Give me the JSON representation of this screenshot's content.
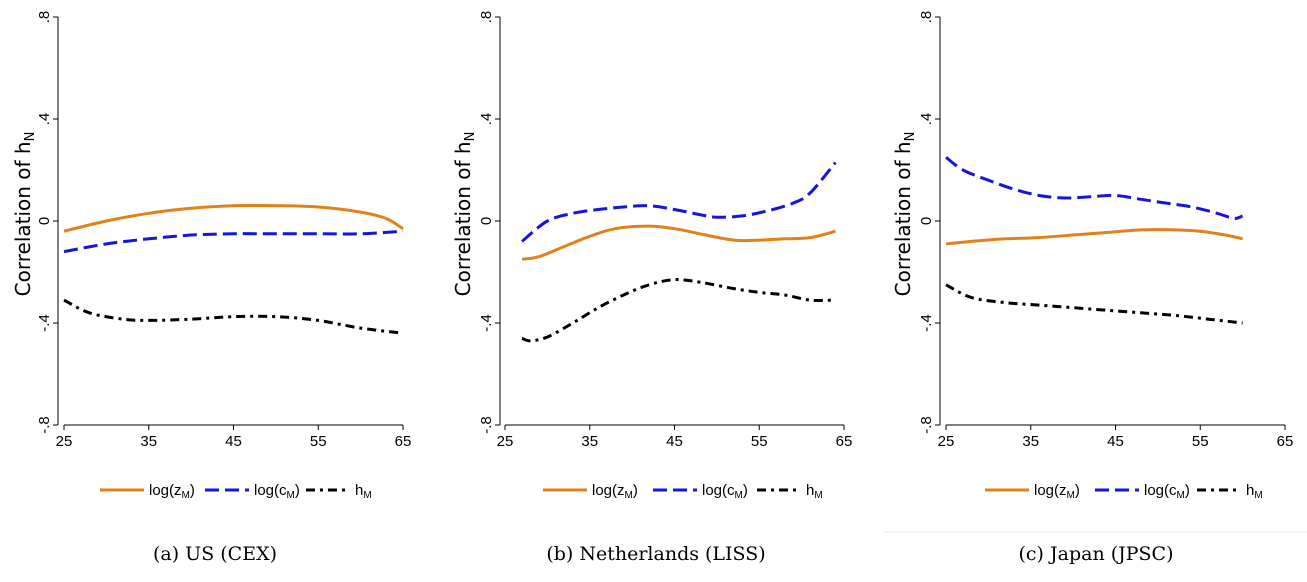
{
  "colors": {
    "log_z": "#e0811a",
    "log_c": "#1515dc",
    "h": "#000000"
  },
  "legend_labels": {
    "log_z": [
      "log(z",
      "M",
      ")"
    ],
    "log_c": [
      "log(c",
      "M",
      ")"
    ],
    "h": [
      "h",
      "M",
      ""
    ]
  },
  "ylabel_parts": [
    "Correlation of h",
    "N"
  ],
  "chart_data": [
    {
      "type": "line",
      "caption": "(a)  US (CEX)",
      "ylabel": "Correlation of h_N",
      "xlim": [
        25,
        65
      ],
      "ylim": [
        -0.8,
        0.8
      ],
      "xticks": [
        25,
        35,
        45,
        55,
        65
      ],
      "yticks": [
        -0.8,
        -0.4,
        0,
        0.4,
        0.8
      ],
      "ytick_labels": [
        "-.8",
        "-.4",
        "0",
        ".4",
        ".8"
      ],
      "legend_position": "bottom",
      "series": [
        {
          "name": "log(z_M)",
          "key": "log_z",
          "style": "solid",
          "x": [
            25,
            30,
            35,
            40,
            45,
            50,
            55,
            60,
            63,
            65
          ],
          "y": [
            -0.04,
            0.0,
            0.03,
            0.05,
            0.06,
            0.06,
            0.055,
            0.035,
            0.01,
            -0.03
          ]
        },
        {
          "name": "log(c_M)",
          "key": "log_c",
          "style": "dash",
          "x": [
            25,
            30,
            35,
            40,
            45,
            50,
            55,
            60,
            65
          ],
          "y": [
            -0.12,
            -0.09,
            -0.07,
            -0.055,
            -0.05,
            -0.05,
            -0.05,
            -0.05,
            -0.04
          ]
        },
        {
          "name": "h_M",
          "key": "h",
          "style": "dashdot",
          "x": [
            25,
            28,
            32,
            35,
            40,
            45,
            50,
            55,
            60,
            65
          ],
          "y": [
            -0.31,
            -0.36,
            -0.385,
            -0.39,
            -0.385,
            -0.375,
            -0.375,
            -0.39,
            -0.42,
            -0.44
          ]
        }
      ]
    },
    {
      "type": "line",
      "caption": "(b)  Netherlands (LISS)",
      "ylabel": "Correlation of h_N",
      "xlim": [
        25,
        65
      ],
      "ylim": [
        -0.8,
        0.8
      ],
      "xticks": [
        25,
        35,
        45,
        55,
        65
      ],
      "yticks": [
        -0.8,
        -0.4,
        0,
        0.4,
        0.8
      ],
      "ytick_labels": [
        "-.8",
        "-.4",
        "0",
        ".4",
        ".8"
      ],
      "legend_position": "bottom",
      "series": [
        {
          "name": "log(z_M)",
          "key": "log_z",
          "style": "solid",
          "x": [
            27,
            29,
            32,
            35,
            38,
            42,
            45,
            48,
            52,
            55,
            58,
            61,
            64
          ],
          "y": [
            -0.15,
            -0.14,
            -0.1,
            -0.06,
            -0.03,
            -0.02,
            -0.03,
            -0.05,
            -0.075,
            -0.075,
            -0.07,
            -0.065,
            -0.04
          ]
        },
        {
          "name": "log(c_M)",
          "key": "log_c",
          "style": "dash",
          "x": [
            27,
            30,
            33,
            36,
            39,
            42,
            45,
            48,
            50,
            53,
            56,
            59,
            61,
            64
          ],
          "y": [
            -0.08,
            0.0,
            0.03,
            0.045,
            0.055,
            0.06,
            0.045,
            0.025,
            0.015,
            0.02,
            0.04,
            0.07,
            0.11,
            0.23
          ]
        },
        {
          "name": "h_M",
          "key": "h",
          "style": "dashdot",
          "x": [
            27,
            28,
            30,
            33,
            36,
            39,
            42,
            45,
            48,
            52,
            55,
            58,
            61,
            64
          ],
          "y": [
            -0.46,
            -0.47,
            -0.455,
            -0.4,
            -0.34,
            -0.29,
            -0.25,
            -0.23,
            -0.24,
            -0.265,
            -0.28,
            -0.29,
            -0.31,
            -0.31
          ]
        }
      ]
    },
    {
      "type": "line",
      "caption": "(c)  Japan (JPSC)",
      "ylabel": "Correlation of h_N",
      "xlim": [
        25,
        65
      ],
      "ylim": [
        -0.8,
        0.8
      ],
      "xticks": [
        25,
        35,
        45,
        55,
        65
      ],
      "yticks": [
        -0.8,
        -0.4,
        0,
        0.4,
        0.8
      ],
      "ytick_labels": [
        "-.8",
        "-.4",
        "0",
        ".4",
        ".8"
      ],
      "legend_position": "bottom",
      "series": [
        {
          "name": "log(z_M)",
          "key": "log_z",
          "style": "solid",
          "x": [
            25,
            28,
            32,
            36,
            40,
            44,
            48,
            52,
            55,
            58,
            60
          ],
          "y": [
            -0.09,
            -0.08,
            -0.07,
            -0.065,
            -0.055,
            -0.045,
            -0.035,
            -0.035,
            -0.04,
            -0.055,
            -0.07
          ]
        },
        {
          "name": "log(c_M)",
          "key": "log_c",
          "style": "dash",
          "x": [
            25,
            27,
            30,
            33,
            36,
            39,
            42,
            45,
            48,
            51,
            54,
            57,
            59,
            60
          ],
          "y": [
            0.25,
            0.2,
            0.16,
            0.125,
            0.1,
            0.09,
            0.095,
            0.1,
            0.085,
            0.07,
            0.055,
            0.03,
            0.01,
            0.02
          ]
        },
        {
          "name": "h_M",
          "key": "h",
          "style": "dashdot",
          "x": [
            25,
            28,
            32,
            36,
            40,
            44,
            48,
            52,
            56,
            60
          ],
          "y": [
            -0.25,
            -0.3,
            -0.32,
            -0.33,
            -0.34,
            -0.35,
            -0.36,
            -0.37,
            -0.385,
            -0.4
          ]
        }
      ]
    }
  ]
}
